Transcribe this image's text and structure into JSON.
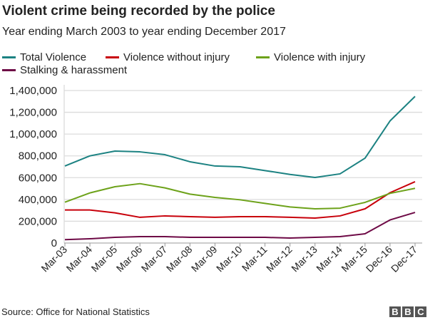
{
  "chart_data": {
    "type": "line",
    "title": "Violent crime being recorded by the police",
    "subtitle": "Year ending March 2003 to year ending December 2017",
    "categories": [
      "Mar-03",
      "Mar-04",
      "Mar-05",
      "Mar-06",
      "Mar-07",
      "Mar-08",
      "Mar-09",
      "Mar-10",
      "Mar-11",
      "Mar-12",
      "Mar-13",
      "Mar-14",
      "Mar-15",
      "Dec-16",
      "Dec-17"
    ],
    "ylim": [
      0,
      1400000
    ],
    "yticks": [
      0,
      200000,
      400000,
      600000,
      800000,
      1000000,
      1200000,
      1400000
    ],
    "ytick_labels": [
      "0",
      "200,000",
      "400,000",
      "600,000",
      "800,000",
      "1,000,000",
      "1,200,000",
      "1,400,000"
    ],
    "grid": true,
    "legend_placement": "top",
    "series": [
      {
        "name": "Total Violence",
        "color": "#1c8282",
        "values": [
          707000,
          800000,
          844000,
          837000,
          811000,
          746000,
          707000,
          700000,
          665000,
          630000,
          602000,
          635000,
          779000,
          1121000,
          1346000
        ]
      },
      {
        "name": "Violence without injury",
        "color": "#c8000a",
        "values": [
          303000,
          303000,
          277000,
          236000,
          249000,
          242000,
          236000,
          242000,
          242000,
          236000,
          229000,
          249000,
          314000,
          462000,
          563000
        ]
      },
      {
        "name": "Violence with injury",
        "color": "#6da21a",
        "values": [
          375000,
          460000,
          517000,
          545000,
          506000,
          449000,
          419000,
          397000,
          364000,
          331000,
          314000,
          320000,
          373000,
          456000,
          502000
        ]
      },
      {
        "name": "Stalking & harassment",
        "color": "#6e0a46",
        "values": [
          31000,
          39000,
          52000,
          59000,
          59000,
          52000,
          52000,
          52000,
          52000,
          46000,
          52000,
          59000,
          85000,
          212000,
          281000
        ]
      }
    ]
  },
  "footer": {
    "source": "Source: Office for National Statistics",
    "logo": "BBC"
  }
}
